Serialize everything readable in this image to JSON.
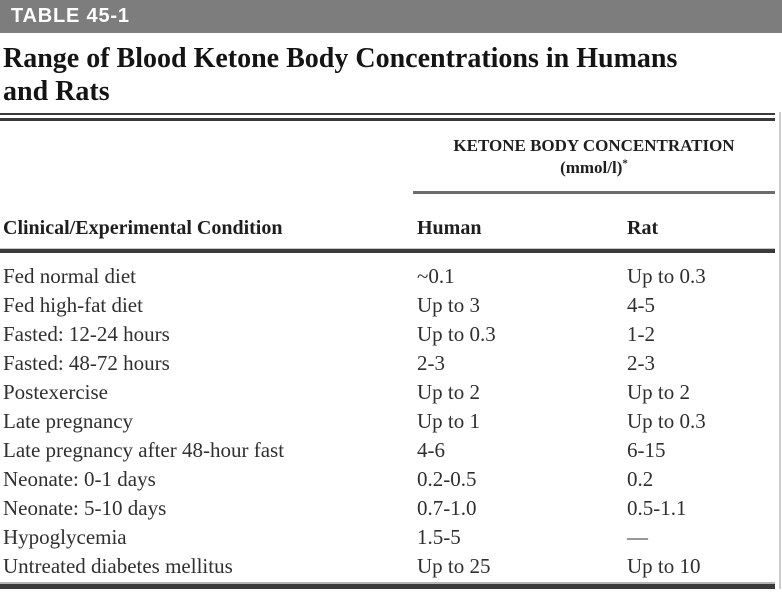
{
  "table_label": "TABLE 45-1",
  "title_lines": [
    "Range of Blood Ketone Body Concentrations in Humans",
    "and Rats"
  ],
  "spanner": {
    "line1": "KETONE BODY CONCENTRATION",
    "unit": "(mmol/l)",
    "unit_superscript": "*"
  },
  "columns": {
    "condition": "Clinical/Experimental Condition",
    "human": "Human",
    "rat": "Rat"
  },
  "rows": [
    {
      "condition": "Fed normal diet",
      "human": "~0.1",
      "rat": "Up to 0.3"
    },
    {
      "condition": "Fed high-fat diet",
      "human": "Up to 3",
      "rat": "4-5"
    },
    {
      "condition": "Fasted: 12-24 hours",
      "human": "Up to 0.3",
      "rat": "1-2"
    },
    {
      "condition": "Fasted: 48-72 hours",
      "human": "2-3",
      "rat": "2-3"
    },
    {
      "condition": "Postexercise",
      "human": "Up to 2",
      "rat": "Up to 2"
    },
    {
      "condition": "Late pregnancy",
      "human": "Up to 1",
      "rat": "Up to 0.3"
    },
    {
      "condition": "Late pregnancy after 48-hour fast",
      "human": "4-6",
      "rat": "6-15"
    },
    {
      "condition": "Neonate: 0-1 days",
      "human": "0.2-0.5",
      "rat": "0.2"
    },
    {
      "condition": "Neonate: 5-10 days",
      "human": "0.7-1.0",
      "rat": "0.5-1.1"
    },
    {
      "condition": "Hypoglycemia",
      "human": "1.5-5",
      "rat": "—"
    },
    {
      "condition": "Untreated diabetes mellitus",
      "human": "Up to 25",
      "rat": "Up to 10"
    }
  ],
  "colors": {
    "header_bar": "#7d7d7d",
    "rule": "#3a3a3a",
    "body_text": "#2f2f2f"
  }
}
